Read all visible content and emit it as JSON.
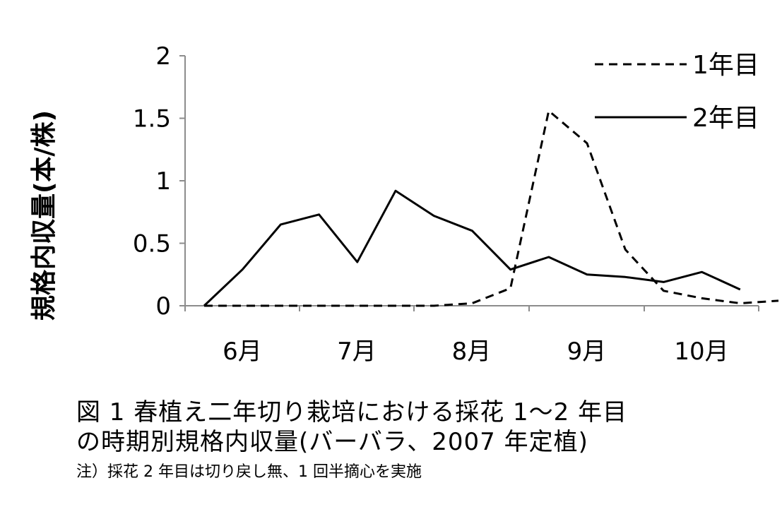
{
  "chart_data": {
    "type": "line",
    "ylabel": "規格内収量(本/株)",
    "ylim": [
      0,
      2
    ],
    "yticks": [
      "0",
      "0.5",
      "1",
      "1.5",
      "2"
    ],
    "ytick_values": [
      0,
      0.5,
      1,
      1.5,
      2
    ],
    "x_month_labels": [
      "6月",
      "7月",
      "8月",
      "9月",
      "10月"
    ],
    "legend_position": "top-right",
    "grid": false,
    "series": [
      {
        "name": "1年目",
        "style": "dashed",
        "values": [
          0,
          0,
          0,
          0,
          0,
          0,
          0,
          0.02,
          0.14,
          1.56,
          1.3,
          0.45,
          0.12,
          0.06,
          0.02,
          0.04
        ]
      },
      {
        "name": "2年目",
        "style": "solid",
        "values": [
          0,
          0.29,
          0.65,
          0.73,
          0.35,
          0.92,
          0.72,
          0.6,
          0.29,
          0.39,
          0.25,
          0.23,
          0.19,
          0.27,
          0.13
        ]
      }
    ]
  },
  "caption": {
    "line1": "図 1  春植え二年切り栽培における採花 1～2 年目",
    "line2": "の時期別規格内収量(バーバラ、2007 年定植)",
    "note": "注）採花 2 年目は切り戻し無、1 回半摘心を実施"
  }
}
